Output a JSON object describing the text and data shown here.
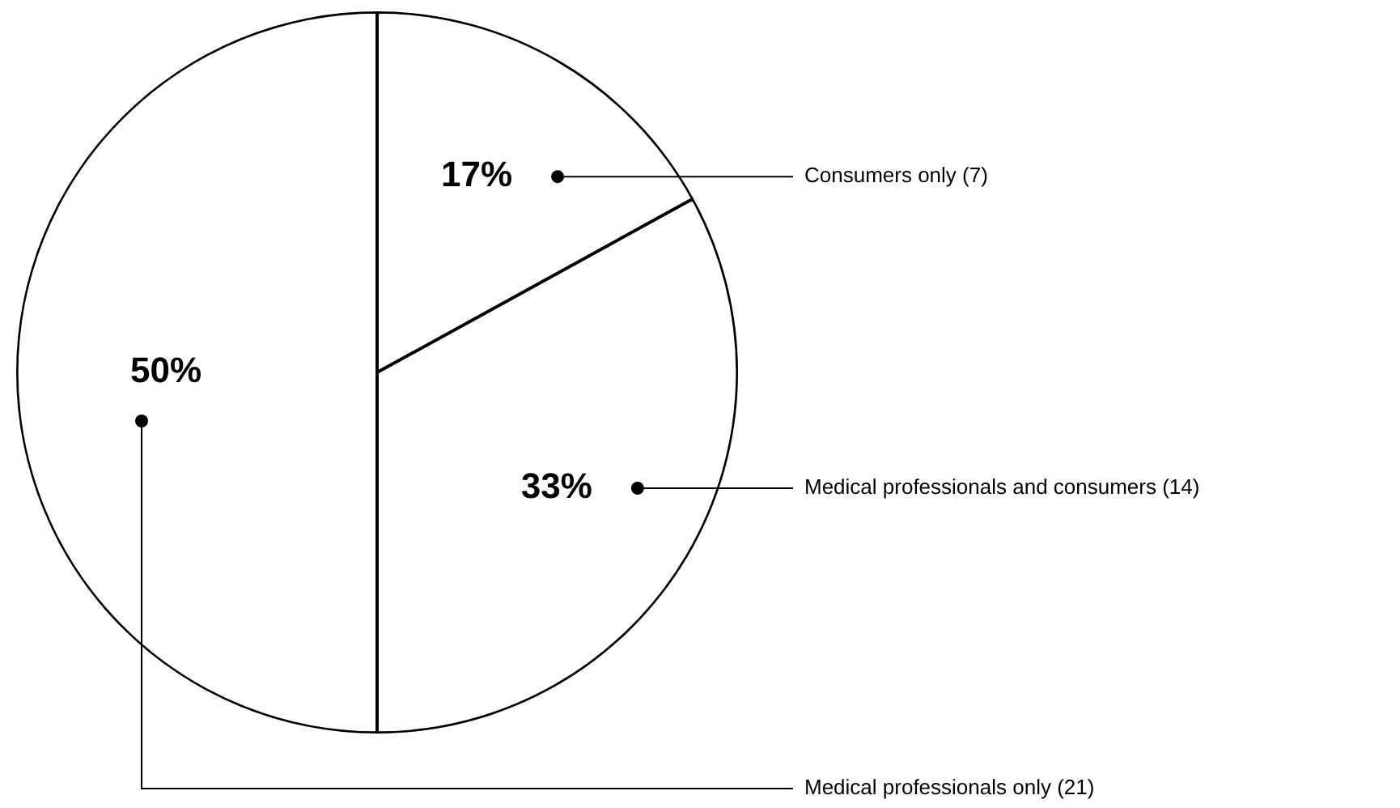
{
  "chart_data": {
    "type": "pie",
    "categories": [
      "Consumers only (7)",
      "Medical professionals and consumers (14)",
      "Medical professionals only (21)"
    ],
    "values": [
      17,
      33,
      50
    ],
    "colors": [
      "#ffffff",
      "#ffffff",
      "#ffffff"
    ],
    "value_labels": [
      "17%",
      "33%",
      "50%"
    ]
  }
}
